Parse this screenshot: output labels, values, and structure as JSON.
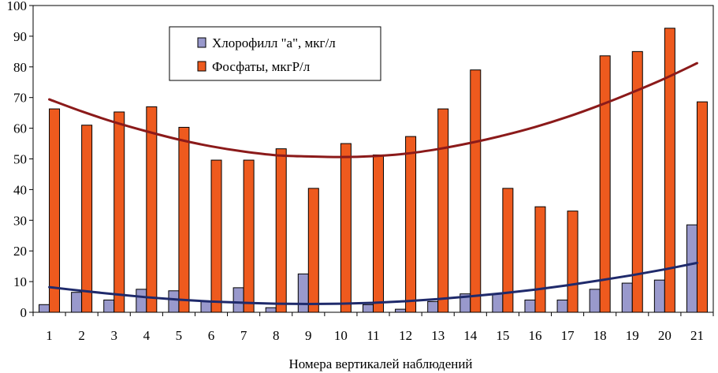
{
  "chart_data": {
    "type": "bar",
    "title": "",
    "xlabel": "Номера вертикалей наблюдений",
    "ylabel": "",
    "ylim": [
      0,
      100
    ],
    "yticks": [
      0,
      10,
      20,
      30,
      40,
      50,
      60,
      70,
      80,
      90,
      100
    ],
    "grid": false,
    "legend_position": "top-left",
    "categories": [
      "1",
      "2",
      "3",
      "4",
      "5",
      "6",
      "7",
      "8",
      "9",
      "10",
      "11",
      "12",
      "13",
      "14",
      "15",
      "16",
      "17",
      "18",
      "19",
      "20",
      "21"
    ],
    "series": [
      {
        "name": "Хлорофилл \"а\", мкг/л",
        "color": "#9999cc",
        "values": [
          2.5,
          6.5,
          4,
          7.5,
          7,
          3.5,
          8,
          1.5,
          12.5,
          0,
          2.5,
          1,
          3.5,
          6,
          6,
          4,
          4,
          7.5,
          9.5,
          10.5,
          28.5
        ]
      },
      {
        "name": "Фосфаты, мкгР/л",
        "color": "#ee5a1e",
        "values": [
          66.3,
          61,
          65.3,
          67,
          60.3,
          49.6,
          49.6,
          53.3,
          40.4,
          55,
          51.3,
          57.3,
          66.3,
          79,
          40.4,
          34.4,
          33,
          83.6,
          85,
          92.6,
          68.6
        ]
      }
    ],
    "trendlines": [
      {
        "series": "Хлорофилл \"а\", мкг/л",
        "color": "#1f2a6b",
        "values": [
          8.2,
          7.0,
          5.9,
          4.9,
          4.1,
          3.5,
          3.1,
          2.8,
          2.7,
          2.8,
          3.1,
          3.6,
          4.3,
          5.2,
          6.2,
          7.4,
          8.8,
          10.4,
          12.1,
          14.0,
          16.1
        ]
      },
      {
        "series": "Фосфаты, мкгР/л",
        "color": "#8b1a1a",
        "values": [
          69.4,
          65.5,
          62.0,
          59.0,
          56.3,
          54.1,
          52.4,
          51.2,
          50.8,
          50.6,
          50.9,
          51.7,
          53.2,
          55.2,
          57.6,
          60.4,
          63.7,
          67.5,
          71.7,
          76.2,
          81.2
        ]
      }
    ]
  }
}
